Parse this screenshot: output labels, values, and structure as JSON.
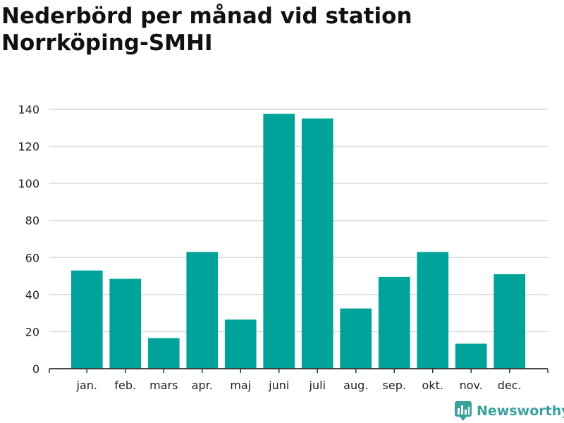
{
  "title": "Nederbörd per månad vid station Norrköping-SMHI",
  "brand": {
    "name": "Newsworthy",
    "icon": "newsworthy-logo-icon"
  },
  "colors": {
    "bar": "#00a39a",
    "grid": "#d9d9d9",
    "axis": "#333333",
    "brand": "#3aa29b"
  },
  "chart_data": {
    "type": "bar",
    "title": "Nederbörd per månad vid station Norrköping-SMHI",
    "xlabel": "",
    "ylabel": "",
    "categories": [
      "jan.",
      "feb.",
      "mars",
      "apr.",
      "maj",
      "juni",
      "juli",
      "aug.",
      "sep.",
      "okt.",
      "nov.",
      "dec."
    ],
    "values": [
      53,
      48.5,
      16.5,
      63,
      26.5,
      137.5,
      135,
      32.5,
      49.5,
      63,
      13.5,
      51
    ],
    "ylim": [
      0,
      140
    ],
    "yticks": [
      "0",
      "20",
      "40",
      "60",
      "80",
      "100",
      "120",
      "140"
    ],
    "grid": true,
    "legend": "none"
  }
}
